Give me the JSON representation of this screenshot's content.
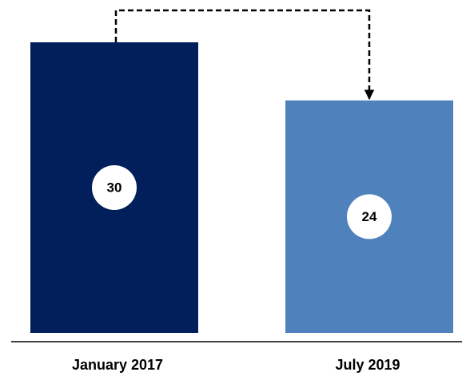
{
  "chart_data": {
    "type": "bar",
    "categories": [
      "January 2017",
      "July 2019"
    ],
    "values": [
      30,
      24
    ],
    "colors": [
      "#001f5b",
      "#4f81bd"
    ]
  }
}
